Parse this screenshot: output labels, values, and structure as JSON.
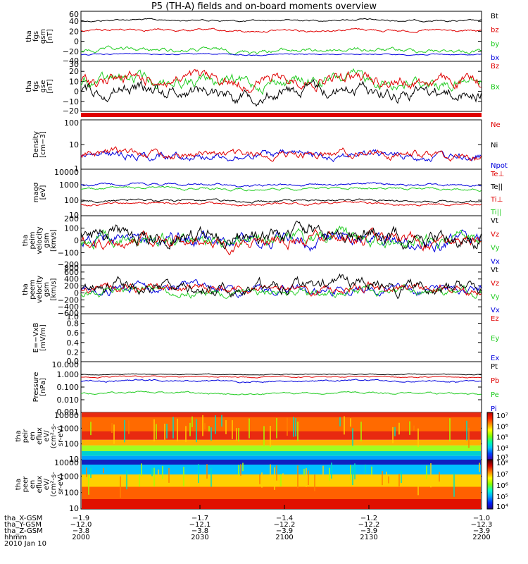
{
  "title": "P5 (TH-A) fields and on-board moments overview",
  "colors": {
    "black": "#000000",
    "red": "#e00000",
    "green": "#22cc22",
    "blue": "#0000dd"
  },
  "panels": [
    {
      "id": "fgs",
      "ylabel": [
        "tha",
        "fgs",
        "gsm",
        "[nT]"
      ],
      "yticks": [
        "60",
        "40",
        "20",
        "0",
        "−20",
        "−40"
      ],
      "series": [
        {
          "name": "Bt",
          "color": "black",
          "base": 45
        },
        {
          "name": "bz",
          "color": "red",
          "base": 25
        },
        {
          "name": "by",
          "color": "green",
          "base": -20
        },
        {
          "name": "bx",
          "color": "blue",
          "base": -24
        }
      ],
      "ylim": [
        -40,
        60
      ]
    },
    {
      "id": "fgs2",
      "ylabel": [
        "tha",
        "fgs",
        "gse",
        "[nT]"
      ],
      "yticks": [
        "30",
        "20",
        "10",
        "0",
        "−10",
        "−20"
      ],
      "series": [
        {
          "name": "Bz",
          "color": "red",
          "base": 8
        },
        {
          "name": "Bx",
          "color": "green",
          "base": 5
        },
        {
          "name": "",
          "color": "black",
          "base": 0
        }
      ],
      "ylim": [
        -25,
        30
      ]
    },
    {
      "id": "density",
      "ylabel": [
        "Density",
        "[cm−3]"
      ],
      "yticks": [
        "100",
        "10",
        "1"
      ],
      "series": [
        {
          "name": "Ne",
          "color": "red"
        },
        {
          "name": "Ni",
          "color": "black"
        },
        {
          "name": "Npot",
          "color": "blue"
        }
      ],
      "ylim": [
        1,
        150
      ]
    },
    {
      "id": "temp",
      "ylabel": [
        "magσ",
        "[eV]"
      ],
      "yticks": [
        "10000",
        "1000",
        "100",
        "10"
      ],
      "series": [
        {
          "name": "Te⊥",
          "color": "red"
        },
        {
          "name": "Te||",
          "color": "black"
        },
        {
          "name": "Ti⊥",
          "color": "red"
        },
        {
          "name": "Ti||",
          "color": "green"
        }
      ],
      "ylim": [
        10,
        10000
      ]
    },
    {
      "id": "peim",
      "ylabel": [
        "tha",
        "peim",
        "velocity",
        "gsm",
        "[km/s]"
      ],
      "yticks": [
        "200",
        "100",
        "0",
        "−100",
        "−200"
      ],
      "series": [
        {
          "name": "Vt",
          "color": "black"
        },
        {
          "name": "Vz",
          "color": "red"
        },
        {
          "name": "Vy",
          "color": "green"
        },
        {
          "name": "Vx",
          "color": "blue"
        }
      ],
      "ylim": [
        -200,
        200
      ]
    },
    {
      "id": "peem",
      "ylabel": [
        "tha",
        "peem",
        "velocity",
        "gsm",
        "[km/s]"
      ],
      "yticks": [
        "800",
        "600",
        "400",
        "200",
        "0",
        "−200",
        "−400",
        "−600"
      ],
      "series": [
        {
          "name": "Vt",
          "color": "black"
        },
        {
          "name": "Vz",
          "color": "red"
        },
        {
          "name": "Vy",
          "color": "green"
        },
        {
          "name": "Vx",
          "color": "blue"
        }
      ],
      "ylim": [
        -600,
        800
      ]
    },
    {
      "id": "exb",
      "ylabel": [
        "E=−VxB",
        "[mV/m]"
      ],
      "yticks": [
        "1.0",
        "0.8",
        "0.6",
        "0.4",
        "0.2",
        "0.0"
      ],
      "series": [
        {
          "name": "Ez",
          "color": "red"
        },
        {
          "name": "Ey",
          "color": "green"
        },
        {
          "name": "Ex",
          "color": "blue"
        }
      ],
      "ylim": [
        0,
        1
      ]
    },
    {
      "id": "pressure",
      "ylabel": [
        "Pressure",
        "[nPa]"
      ],
      "yticks": [
        "10.000",
        "1.000",
        "0.100",
        "0.010",
        "0.001"
      ],
      "series": [
        {
          "name": "Pt",
          "color": "black"
        },
        {
          "name": "Pb",
          "color": "red"
        },
        {
          "name": "Pe",
          "color": "green"
        },
        {
          "name": "Pi",
          "color": "blue"
        }
      ],
      "ylim": [
        0.001,
        10
      ]
    },
    {
      "id": "peir",
      "ylabel": [
        "tha",
        "peir",
        "en",
        "eflux",
        "eV/",
        "(cm²-s-",
        "sr-eV)"
      ],
      "yticks": [
        "10000",
        "1000",
        "100",
        "10"
      ],
      "cbar": [
        "10⁷",
        "10⁶",
        "10⁵",
        "10⁴",
        "10³"
      ]
    },
    {
      "id": "peer",
      "ylabel": [
        "tha",
        "peer",
        "en",
        "eflux",
        "eV/",
        "(cm²-s-",
        "sr-eV)"
      ],
      "yticks": [
        "10000",
        "1000",
        "100",
        "10"
      ],
      "cbar": [
        "10⁸",
        "10⁷",
        "10⁶",
        "10⁵",
        "10⁴"
      ]
    }
  ],
  "ephemeris": {
    "labels": [
      "tha_X-GSM",
      "tha_Y-GSM",
      "tha_Z-GSM",
      "hhmm"
    ],
    "columns": [
      [
        "−1.9",
        "−12.0",
        "−3.8",
        "2000"
      ],
      [
        "−1.7",
        "−12.1",
        "−3.8",
        "2030"
      ],
      [
        "−1.4",
        "−12.2",
        "−3.9",
        "2100"
      ],
      [
        "−1.2",
        "−12.2",
        "−3.9",
        "2130"
      ],
      [
        "−1.0",
        "−12.3",
        "−3.9",
        "2200"
      ]
    ]
  },
  "date": "2010 Jan 10",
  "chart_data": {
    "type": "line",
    "title": "P5 (TH-A) fields and on-board moments overview",
    "x": [
      "2000",
      "2030",
      "2100",
      "2130",
      "2200"
    ],
    "xlabel": "hhmm",
    "series": [
      {
        "name": "Bt",
        "values": [
          45,
          42,
          44,
          48,
          42
        ]
      },
      {
        "name": "bz",
        "values": [
          25,
          22,
          23,
          28,
          22
        ]
      },
      {
        "name": "by",
        "values": [
          -20,
          -22,
          -18,
          -20,
          -22
        ]
      },
      {
        "name": "bx",
        "values": [
          -24,
          -26,
          -24,
          -25,
          -24
        ]
      }
    ]
  }
}
